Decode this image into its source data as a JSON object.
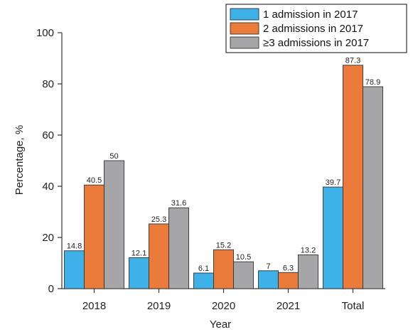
{
  "chart_data": {
    "type": "bar",
    "categories": [
      "2018",
      "2019",
      "2020",
      "2021",
      "Total"
    ],
    "series": [
      {
        "name": "1 admission in 2017",
        "color": "#3eb1e8",
        "values": [
          14.8,
          12.1,
          6.1,
          7,
          39.7
        ]
      },
      {
        "name": "2 admissions in 2017",
        "color": "#ea7b3a",
        "values": [
          40.5,
          25.3,
          15.2,
          6.3,
          87.3
        ]
      },
      {
        "name": "≥3 admissions in 2017",
        "color": "#a6a6a8",
        "values": [
          50,
          31.6,
          10.5,
          13.2,
          78.9
        ]
      }
    ],
    "data_labels": [
      [
        "14.8",
        "12.1",
        "6.1",
        "7",
        "39.7"
      ],
      [
        "40.5",
        "25.3",
        "15.2",
        "6.3",
        "87.3"
      ],
      [
        "50",
        "31.6",
        "10.5",
        "13.2",
        "78.9"
      ]
    ],
    "xlabel": "Year",
    "ylabel": "Percentage, %",
    "ylim": [
      0,
      100
    ],
    "yticks": [
      "0",
      "20",
      "40",
      "60",
      "80",
      "100"
    ],
    "grid": false,
    "legend_position": "top-right"
  }
}
